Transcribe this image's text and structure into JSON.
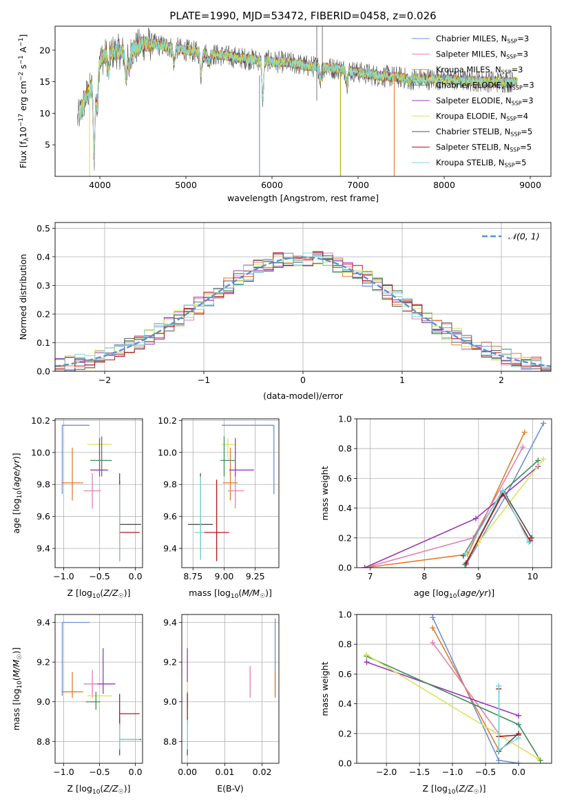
{
  "figure": {
    "title": "PLATE=1990, MJD=53472, FIBERID=0458, z=0.026"
  },
  "chart_data": [
    {
      "id": "spectrum",
      "type": "line",
      "xlabel": "wavelength [Angstrom, rest frame]",
      "ylabel": "Flux [f_λ 10^-17 erg cm^-2 s^-1 A^-1]",
      "xlim": [
        3480,
        9240
      ],
      "ylim": [
        0,
        23.8
      ],
      "xticks": [
        4000,
        5000,
        6000,
        7000,
        8000,
        9000
      ],
      "yticks": [
        5,
        10,
        15,
        20
      ],
      "grid": false,
      "legend_position": "top-right",
      "series": [
        {
          "name": "Chabrier MILES, N_SSP=3",
          "color": "#6b8fd4"
        },
        {
          "name": "Salpeter MILES, N_SSP=3",
          "color": "#e07fae"
        },
        {
          "name": "Kroupa MILES, N_SSP=3",
          "color": "#b8a500"
        },
        {
          "name": "Chabrier ELODIE, N_SSP=3",
          "color": "#3e8c5a"
        },
        {
          "name": "Salpeter ELODIE, N_SSP=3",
          "color": "#9b36b7"
        },
        {
          "name": "Kroupa ELODIE, N_SSP=4",
          "color": "#d9e35c"
        },
        {
          "name": "Chabrier STELIB, N_SSP=5",
          "color": "#505050"
        },
        {
          "name": "Salpeter STELIB, N_SSP=5",
          "color": "#b3141e"
        },
        {
          "name": "Kroupa STELIB, N_SSP=5",
          "color": "#7fd6d9"
        }
      ],
      "continuum": {
        "x": [
          3740,
          3800,
          3850,
          3900,
          3950,
          4000,
          4100,
          4200,
          4300,
          4400,
          4500,
          4600,
          4800,
          5000,
          5200,
          5400,
          5600,
          5800,
          6000,
          6200,
          6400,
          6600,
          6800,
          7000,
          7200,
          7400,
          7600,
          7800,
          8000,
          8200,
          8400,
          8600,
          8800
        ],
        "y": [
          9,
          11,
          13,
          14,
          15.5,
          18.5,
          19.5,
          19.8,
          19.5,
          20.2,
          21,
          21,
          20.5,
          20,
          19.5,
          19.2,
          18.8,
          18.5,
          18.2,
          18,
          17.5,
          17.3,
          17,
          16.5,
          16,
          15.8,
          15.5,
          15.4,
          15.4,
          15.2,
          15.1,
          15.0,
          15.0
        ]
      },
      "features": [
        {
          "x": 3934,
          "depth": 12
        },
        {
          "x": 3968,
          "depth": 6
        },
        {
          "x": 4101,
          "depth": 3
        },
        {
          "x": 4304,
          "depth": 4
        },
        {
          "x": 4340,
          "depth": 3
        },
        {
          "x": 4861,
          "depth": 2.5
        },
        {
          "x": 5175,
          "depth": 3.5
        },
        {
          "x": 5270,
          "depth": 1.5
        },
        {
          "x": 5893,
          "depth": 6
        },
        {
          "x": 6563,
          "depth": 2
        },
        {
          "x": 6870,
          "depth": 2
        },
        {
          "x": 7600,
          "depth": 1
        }
      ]
    },
    {
      "id": "residuals",
      "type": "step",
      "xlabel": "(data-model)/error",
      "ylabel": "Normed distribution",
      "xlim": [
        -2.5,
        2.5
      ],
      "ylim": [
        0,
        0.52
      ],
      "xticks": [
        -2,
        -1,
        0,
        1,
        2
      ],
      "yticks": [
        0.0,
        0.1,
        0.2,
        0.3,
        0.4,
        0.5
      ],
      "grid": true,
      "legend_position": "top-right",
      "legend": "𝒩(0, 1)",
      "reference": {
        "mean": 0,
        "sigma": 1,
        "color": "#5b8fd6"
      },
      "bin_width": 0.1,
      "histogram_colors": [
        "#6b8fd4",
        "#e07fae",
        "#e27a29",
        "#3e8c5a",
        "#9b36b7",
        "#d9e35c",
        "#505050",
        "#b3141e",
        "#7fd6d9"
      ]
    },
    {
      "id": "age-vs-metallicity",
      "type": "errorbar",
      "xlabel": "Z [log10(Z/Z☉)]",
      "ylabel": "age  [log10(age/yr)]",
      "xlim": [
        -1.12,
        0.1
      ],
      "ylim": [
        9.28,
        10.21
      ],
      "xticks": [
        -1.0,
        -0.5,
        0.0
      ],
      "yticks": [
        9.4,
        9.6,
        9.8,
        10.0,
        10.2
      ],
      "grid": true,
      "points": [
        {
          "x": -1.02,
          "xerr": [
            0,
            0.38
          ],
          "y": 10.17,
          "yerr": [
            0.43,
            0
          ],
          "color": "#6b8fd4"
        },
        {
          "x": -0.88,
          "xerr": [
            0.15,
            0.15
          ],
          "y": 9.81,
          "yerr": [
            0.11,
            0.22
          ],
          "color": "#e27a29"
        },
        {
          "x": -0.6,
          "xerr": [
            0.12,
            0.12
          ],
          "y": 9.76,
          "yerr": [
            0.11,
            0.11
          ],
          "color": "#e07fae"
        },
        {
          "x": -0.5,
          "xerr": [
            0.17,
            0.17
          ],
          "y": 10.05,
          "yerr": [
            0.09,
            0.04
          ],
          "color": "#d9e35c"
        },
        {
          "x": -0.47,
          "xerr": [
            0.16,
            0.14
          ],
          "y": 9.95,
          "yerr": [
            0.1,
            0.15
          ],
          "color": "#3e8c5a"
        },
        {
          "x": -0.5,
          "xerr": [
            0.13,
            0.12
          ],
          "y": 9.89,
          "yerr": [
            0.04,
            0.2
          ],
          "color": "#9b36b7"
        },
        {
          "x": -0.22,
          "xerr": [
            0,
            0.3
          ],
          "y": 9.55,
          "yerr": [
            0.22,
            0.32
          ],
          "color": "#505050"
        },
        {
          "x": -0.22,
          "xerr": [
            0,
            0.28
          ],
          "y": 9.5,
          "yerr": [
            0.18,
            0.32
          ],
          "color": "#b3141e"
        },
        {
          "x": -0.22,
          "xerr": [
            0,
            0
          ],
          "y": 9.45,
          "yerr": [
            0.13,
            0.35
          ],
          "color": "#7fd6d9"
        }
      ]
    },
    {
      "id": "age-vs-mass",
      "type": "errorbar",
      "xlabel": "mass [log10(M/M☉)]",
      "ylabel": "",
      "xlim": [
        8.66,
        9.44
      ],
      "ylim": [
        9.28,
        10.21
      ],
      "xticks": [
        8.75,
        9.0,
        9.25
      ],
      "yticks": [
        9.4,
        9.6,
        9.8,
        10.0,
        10.2
      ],
      "grid": true,
      "points": [
        {
          "x": 9.4,
          "xerr": [
            0.42,
            0
          ],
          "y": 10.17,
          "yerr": [
            0.43,
            0
          ],
          "color": "#6b8fd4"
        },
        {
          "x": 9.05,
          "xerr": [
            0.06,
            0.06
          ],
          "y": 9.81,
          "yerr": [
            0.11,
            0.22
          ],
          "color": "#e27a29"
        },
        {
          "x": 9.09,
          "xerr": [
            0.06,
            0.07
          ],
          "y": 9.76,
          "yerr": [
            0.11,
            0.11
          ],
          "color": "#e07fae"
        },
        {
          "x": 9.03,
          "xerr": [
            0.05,
            0.06
          ],
          "y": 10.05,
          "yerr": [
            0.09,
            0.04
          ],
          "color": "#d9e35c"
        },
        {
          "x": 9.0,
          "xerr": [
            0.03,
            0.09
          ],
          "y": 9.95,
          "yerr": [
            0.1,
            0.15
          ],
          "color": "#3e8c5a"
        },
        {
          "x": 9.09,
          "xerr": [
            0.05,
            0.15
          ],
          "y": 9.89,
          "yerr": [
            0.04,
            0.2
          ],
          "color": "#9b36b7"
        },
        {
          "x": 8.81,
          "xerr": [
            0.1,
            0.1
          ],
          "y": 9.55,
          "yerr": [
            0.22,
            0.32
          ],
          "color": "#505050"
        },
        {
          "x": 8.94,
          "xerr": [
            0.1,
            0.1
          ],
          "y": 9.5,
          "yerr": [
            0.18,
            0.33
          ],
          "color": "#b3141e"
        },
        {
          "x": 8.81,
          "xerr": [
            0.05,
            0.03
          ],
          "y": 9.5,
          "yerr": [
            0.17,
            0.35
          ],
          "color": "#7fd6d9"
        }
      ]
    },
    {
      "id": "weight-vs-age",
      "type": "line",
      "xlabel": "age  [log10(age/yr)]",
      "ylabel": "mass weight",
      "xlim": [
        6.75,
        10.35
      ],
      "ylim": [
        0,
        1
      ],
      "xticks": [
        7,
        8,
        9,
        10
      ],
      "yticks": [
        0.0,
        0.2,
        0.4,
        0.6,
        0.8,
        1.0
      ],
      "grid": true,
      "series": [
        {
          "color": "#6b8fd4",
          "points": [
            [
              8.77,
              0.02
            ],
            [
              9.5,
              0.48
            ],
            [
              10.2,
              0.97
            ]
          ]
        },
        {
          "color": "#e27a29",
          "points": [
            [
              6.9,
              0
            ],
            [
              8.8,
              0.09
            ],
            [
              9.85,
              0.91
            ]
          ]
        },
        {
          "color": "#e07fae",
          "points": [
            [
              6.9,
              0
            ],
            [
              8.9,
              0.2
            ],
            [
              9.82,
              0.81
            ]
          ]
        },
        {
          "color": "#9b36b7",
          "points": [
            [
              6.9,
              0
            ],
            [
              8.95,
              0.33
            ],
            [
              10.1,
              0.68
            ]
          ]
        },
        {
          "color": "#3e8c5a",
          "points": [
            [
              8.75,
              0.02
            ],
            [
              9.45,
              0.51
            ],
            [
              10.1,
              0.72
            ]
          ]
        },
        {
          "color": "#d9e35c",
          "points": [
            [
              8.83,
              0.09
            ],
            [
              9.0,
              0.17
            ],
            [
              10.2,
              0.73
            ]
          ]
        },
        {
          "color": "#505050",
          "points": [
            [
              8.72,
              0.08
            ],
            [
              9.45,
              0.52
            ],
            [
              9.98,
              0.2
            ]
          ]
        },
        {
          "color": "#b3141e",
          "points": [
            [
              8.77,
              0.03
            ],
            [
              9.45,
              0.5
            ],
            [
              9.95,
              0.18
            ]
          ]
        },
        {
          "color": "#7fd6d9",
          "points": [
            [
              8.75,
              0.09
            ],
            [
              9.45,
              0.52
            ],
            [
              9.93,
              0.17
            ]
          ]
        }
      ]
    },
    {
      "id": "mass-vs-metallicity",
      "type": "errorbar",
      "xlabel": "Z [log10(Z/Z☉)]",
      "ylabel": "mass [log10(M/M☉)]",
      "xlim": [
        -1.12,
        0.1
      ],
      "ylim": [
        8.69,
        9.44
      ],
      "xticks": [
        -1.0,
        -0.5,
        0.0
      ],
      "yticks": [
        8.8,
        9.0,
        9.2,
        9.4
      ],
      "grid": true,
      "points": [
        {
          "x": -1.02,
          "xerr": [
            0,
            0.38
          ],
          "y": 9.4,
          "yerr": [
            0.37,
            0
          ],
          "color": "#6b8fd4"
        },
        {
          "x": -0.88,
          "xerr": [
            0.15,
            0.15
          ],
          "y": 9.05,
          "yerr": [
            0.03,
            0.1
          ],
          "color": "#e27a29"
        },
        {
          "x": -0.6,
          "xerr": [
            0.12,
            0.12
          ],
          "y": 9.09,
          "yerr": [
            0.07,
            0.07
          ],
          "color": "#e07fae"
        },
        {
          "x": -0.5,
          "xerr": [
            0.17,
            0.17
          ],
          "y": 9.03,
          "yerr": [
            0.05,
            0.06
          ],
          "color": "#d9e35c"
        },
        {
          "x": -0.55,
          "xerr": [
            0.14,
            0.06
          ],
          "y": 9.0,
          "yerr": [
            0.04,
            0.05
          ],
          "color": "#3e8c5a"
        },
        {
          "x": -0.45,
          "xerr": [
            0.08,
            0.17
          ],
          "y": 9.09,
          "yerr": [
            0.05,
            0.18
          ],
          "color": "#9b36b7"
        },
        {
          "x": -0.22,
          "xerr": [
            0,
            0.3
          ],
          "y": 8.81,
          "yerr": [
            0.08,
            0.11
          ],
          "color": "#505050"
        },
        {
          "x": -0.22,
          "xerr": [
            0,
            0.28
          ],
          "y": 8.94,
          "yerr": [
            0.07,
            0.1
          ],
          "color": "#b3141e"
        },
        {
          "x": -0.22,
          "xerr": [
            0,
            0.28
          ],
          "y": 8.81,
          "yerr": [
            0.05,
            0.08
          ],
          "color": "#7fd6d9"
        }
      ]
    },
    {
      "id": "mass-vs-ebv",
      "type": "errorbar",
      "xlabel": "E(B-V)",
      "ylabel": "",
      "xlim": [
        -0.0015,
        0.0245
      ],
      "ylim": [
        8.69,
        9.44
      ],
      "xticks": [
        0.0,
        0.01,
        0.02
      ],
      "yticks": [
        8.8,
        9.0,
        9.2,
        9.4
      ],
      "grid": true,
      "points": [
        {
          "x": 0.0235,
          "y": 9.4,
          "yerr": [
            0.37,
            0.02
          ],
          "color": "#6b8fd4"
        },
        {
          "x": 0.0235,
          "y": 9.05,
          "yerr": [
            0.03,
            0.1
          ],
          "color": "#e27a29"
        },
        {
          "x": 0.0168,
          "y": 9.09,
          "yerr": [
            0.07,
            0.09
          ],
          "color": "#e07fae"
        },
        {
          "x": 0.0,
          "y": 9.03,
          "yerr": [
            0.05,
            0.08
          ],
          "color": "#d9e35c"
        },
        {
          "x": 0.0,
          "y": 9.0,
          "yerr": [
            0.04,
            0.05
          ],
          "color": "#3e8c5a"
        },
        {
          "x": 0.0,
          "y": 9.15,
          "yerr": [
            0.05,
            0.12
          ],
          "color": "#9b36b7"
        },
        {
          "x": 0.0,
          "y": 8.81,
          "yerr": [
            0.08,
            0.11
          ],
          "color": "#505050"
        },
        {
          "x": 0.0,
          "y": 8.96,
          "yerr": [
            0.08,
            0.08
          ],
          "color": "#b3141e"
        },
        {
          "x": 0.0,
          "y": 8.81,
          "yerr": [
            0.05,
            0.1
          ],
          "color": "#7fd6d9"
        }
      ]
    },
    {
      "id": "weight-vs-metallicity",
      "type": "line",
      "xlabel": "Z [log10(Z/Z☉)]",
      "ylabel": "mass weight",
      "xlim": [
        -2.45,
        0.5
      ],
      "ylim": [
        0,
        1
      ],
      "xticks": [
        -2.0,
        -1.5,
        -1.0,
        -0.5,
        0.0
      ],
      "yticks": [
        0.0,
        0.2,
        0.4,
        0.6,
        0.8,
        1.0
      ],
      "grid": true,
      "series": [
        {
          "color": "#6b8fd4",
          "points": [
            [
              -1.3,
              0.98
            ],
            [
              -0.3,
              0.02
            ],
            [
              0.0,
              0.0
            ]
          ]
        },
        {
          "color": "#e27a29",
          "points": [
            [
              -1.3,
              0.91
            ],
            [
              -0.3,
              0.09
            ]
          ]
        },
        {
          "color": "#e07fae",
          "points": [
            [
              -1.3,
              0.81
            ],
            [
              -0.3,
              0.2
            ]
          ]
        },
        {
          "color": "#9b36b7",
          "points": [
            [
              -2.3,
              0.68
            ],
            [
              0.0,
              0.32
            ]
          ]
        },
        {
          "color": "#3e8c5a",
          "points": [
            [
              -2.3,
              0.72
            ],
            [
              0.0,
              0.26
            ],
            [
              0.33,
              0.02
            ]
          ]
        },
        {
          "color": "#d9e35c",
          "points": [
            [
              -2.3,
              0.73
            ],
            [
              0.3,
              0.03
            ]
          ]
        },
        {
          "color": "#505050",
          "points": [
            [
              -0.3,
              0.52
            ],
            [
              -0.3,
              0.08
            ],
            [
              0.0,
              0.2
            ]
          ]
        },
        {
          "color": "#b3141e",
          "points": [
            [
              -0.3,
              0.5
            ],
            [
              -0.3,
              0.18
            ],
            [
              0.0,
              0.19
            ]
          ]
        },
        {
          "color": "#7fd6d9",
          "points": [
            [
              -0.3,
              0.52
            ],
            [
              -0.3,
              0.09
            ],
            [
              0.0,
              0.17
            ]
          ]
        }
      ]
    }
  ]
}
